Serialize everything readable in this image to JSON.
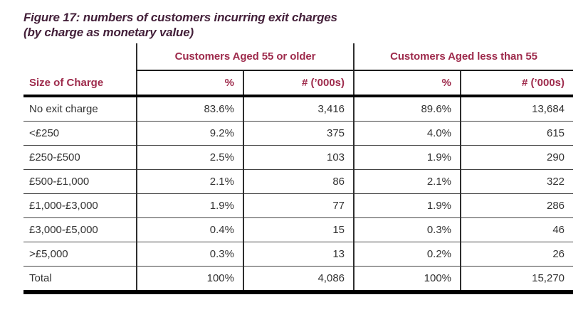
{
  "figure_title": {
    "line1": "Figure 17: numbers of customers incurring exit charges",
    "line2": "(by charge as monetary value)"
  },
  "table": {
    "corner_label": "Size of Charge",
    "group_headers": [
      "Customers Aged 55 or older",
      "Customers Aged less than 55"
    ],
    "sub_headers": [
      "%",
      "# (’000s)",
      "%",
      "# (’000s)"
    ],
    "rows": [
      [
        "No exit charge",
        "83.6%",
        "3,416",
        "89.6%",
        "13,684"
      ],
      [
        "<£250",
        "9.2%",
        "375",
        "4.0%",
        "615"
      ],
      [
        "£250-£500",
        "2.5%",
        "103",
        "1.9%",
        "290"
      ],
      [
        "£500-£1,000",
        "2.1%",
        "86",
        "2.1%",
        "322"
      ],
      [
        "£1,000-£3,000",
        "1.9%",
        "77",
        "1.9%",
        "286"
      ],
      [
        "£3,000-£5,000",
        "0.4%",
        "15",
        "0.3%",
        "46"
      ],
      [
        ">£5,000",
        "0.3%",
        "13",
        "0.2%",
        "26"
      ],
      [
        "Total",
        "100%",
        "4,086",
        "100%",
        "15,270"
      ]
    ]
  },
  "colors": {
    "title_text": "#44203a",
    "header_text": "#9e2b4c",
    "body_text": "#333333",
    "thick_rule": "#000000",
    "thin_rule": "#454545",
    "background": "#ffffff"
  },
  "chart_data": {
    "type": "table",
    "title": "Figure 17: numbers of customers incurring exit charges (by charge as monetary value)",
    "column_groups": [
      "Customers Aged 55 or older",
      "Customers Aged less than 55"
    ],
    "columns": [
      "Size of Charge",
      "% (aged 55 or older)",
      "# ('000s) (aged 55 or older)",
      "% (aged less than 55)",
      "# ('000s) (aged less than 55)"
    ],
    "rows": [
      [
        "No exit charge",
        83.6,
        3416,
        89.6,
        13684
      ],
      [
        "<£250",
        9.2,
        375,
        4.0,
        615
      ],
      [
        "£250-£500",
        2.5,
        103,
        1.9,
        290
      ],
      [
        "£500-£1,000",
        2.1,
        86,
        2.1,
        322
      ],
      [
        "£1,000-£3,000",
        1.9,
        77,
        1.9,
        286
      ],
      [
        "£3,000-£5,000",
        0.4,
        15,
        0.3,
        46
      ],
      [
        ">£5,000",
        0.3,
        13,
        0.2,
        26
      ],
      [
        "Total",
        100,
        4086,
        100,
        15270
      ]
    ],
    "units": {
      "percent_columns": "%",
      "count_columns": "thousands of customers"
    }
  }
}
